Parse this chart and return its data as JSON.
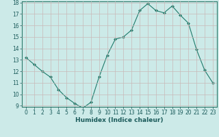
{
  "x": [
    0,
    1,
    2,
    3,
    4,
    5,
    6,
    7,
    8,
    9,
    10,
    11,
    12,
    13,
    14,
    15,
    16,
    17,
    18,
    19,
    20,
    21,
    22,
    23
  ],
  "y": [
    13.2,
    12.6,
    12.0,
    11.5,
    10.4,
    9.7,
    9.2,
    8.8,
    9.3,
    11.5,
    13.4,
    14.8,
    15.0,
    15.6,
    17.3,
    17.9,
    17.3,
    17.1,
    17.7,
    16.9,
    16.2,
    13.9,
    12.1,
    11.0
  ],
  "xlabel": "Humidex (Indice chaleur)",
  "ylim": [
    9,
    18
  ],
  "xlim": [
    -0.5,
    23.5
  ],
  "yticks": [
    9,
    10,
    11,
    12,
    13,
    14,
    15,
    16,
    17,
    18
  ],
  "xticks": [
    0,
    1,
    2,
    3,
    4,
    5,
    6,
    7,
    8,
    9,
    10,
    11,
    12,
    13,
    14,
    15,
    16,
    17,
    18,
    19,
    20,
    21,
    22,
    23
  ],
  "xtick_labels": [
    "0",
    "1",
    "2",
    "3",
    "4",
    "5",
    "6",
    "7",
    "8",
    "9",
    "10",
    "11",
    "12",
    "13",
    "14",
    "15",
    "16",
    "17",
    "18",
    "19",
    "20",
    "21",
    "22",
    "23"
  ],
  "line_color": "#1e7a6a",
  "marker_color": "#1e7a6a",
  "bg_color": "#cceae8",
  "grid_color": "#c8b8b8",
  "fig_bg": "#cceae8",
  "xlabel_fontsize": 6.5,
  "tick_fontsize": 5.5
}
